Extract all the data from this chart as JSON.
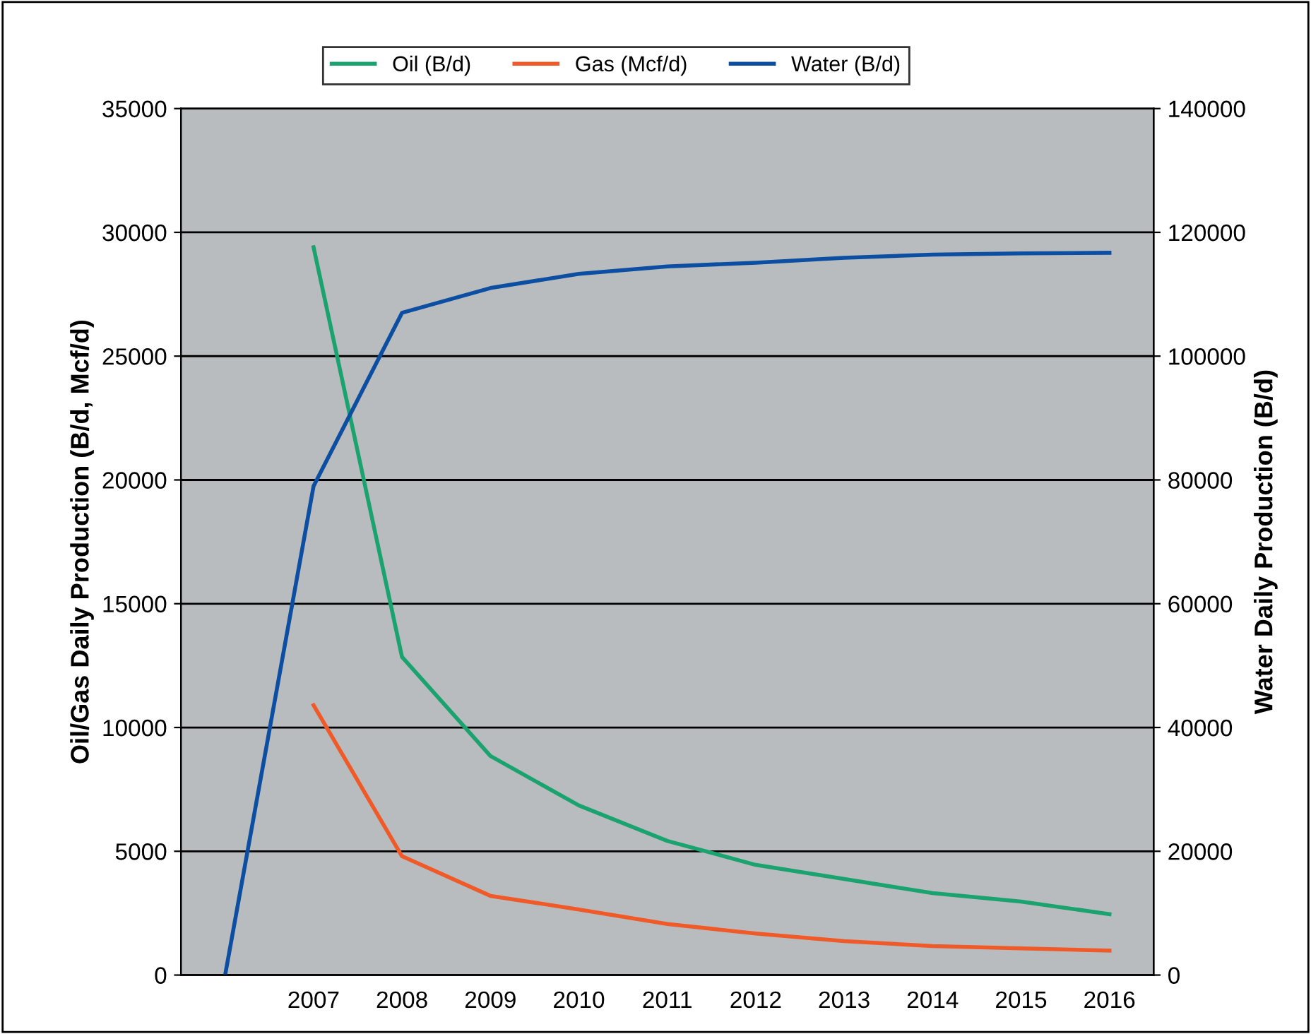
{
  "chart_data": {
    "type": "line",
    "xlabel": null,
    "ylabel": "Oil/Gas Daily Production (B/d, Mcf/d)",
    "y2label": "Water Daily Production (B/d)",
    "categories": [
      null,
      "2007",
      "2008",
      "2009",
      "2010",
      "2011",
      "2012",
      "2013",
      "2014",
      "2015",
      "2016"
    ],
    "series": [
      {
        "name": "Oil (B/d)",
        "color": "#1aa36f",
        "values": [
          null,
          29400,
          12850,
          8850,
          6850,
          5420,
          4450,
          3880,
          3310,
          2970,
          2460
        ]
      },
      {
        "name": "Gas (Mcf/d)",
        "color": "#f05a28",
        "values": [
          null,
          10900,
          4800,
          3200,
          2650,
          2060,
          1680,
          1370,
          1170,
          1080,
          990
        ]
      },
      {
        "name": "Water (B/d)",
        "color": "#0b4ea2",
        "axis": "y2",
        "values": [
          0,
          79000,
          107000,
          111000,
          113300,
          114500,
          115100,
          115900,
          116400,
          116600,
          116700
        ]
      }
    ],
    "ylim": [
      0,
      35000
    ],
    "yticks": [
      0,
      5000,
      10000,
      15000,
      20000,
      25000,
      30000,
      35000
    ],
    "y2lim": [
      0,
      140000
    ],
    "y2ticks": [
      0,
      20000,
      40000,
      60000,
      80000,
      100000,
      120000,
      140000
    ],
    "grid": "y",
    "legend": "top",
    "marker": "none",
    "line_style": "solid"
  }
}
